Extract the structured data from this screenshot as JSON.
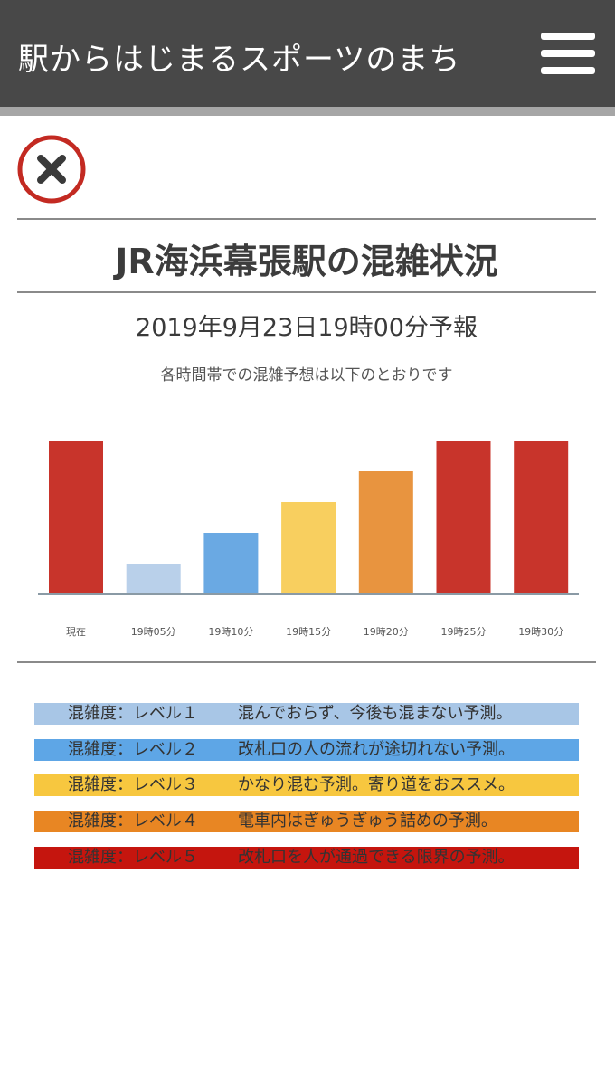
{
  "header": {
    "title": "駅からはじまるスポーツのまち",
    "menu_icon": "hamburger-menu-icon"
  },
  "close_icon": "close-icon",
  "page": {
    "title": "JR海浜幕張駅の混雑状況",
    "forecast_time": "2019年9月23日19時00分予報",
    "intro": "各時間帯での混雑予想は以下のとおりです"
  },
  "chart_data": {
    "type": "bar",
    "categories": [
      "現在",
      "19時05分",
      "19時10分",
      "19時15分",
      "19時20分",
      "19時25分",
      "19時30分"
    ],
    "values": [
      5,
      1,
      2,
      3,
      4,
      5,
      5
    ],
    "ylim": [
      0,
      5
    ],
    "grid": false,
    "level_colors": {
      "1": "#b9d0ea",
      "2": "#6aa9e3",
      "3": "#f8cf5f",
      "4": "#e8943f",
      "5": "#c8342b"
    }
  },
  "legend": [
    {
      "level": "混雑度：レベル１",
      "description": "混んでおらず、今後も混まない予測。",
      "color": "#a8c6e6"
    },
    {
      "level": "混雑度：レベル２",
      "description": "改札口の人の流れが途切れない予測。",
      "color": "#5ea6e6"
    },
    {
      "level": "混雑度：レベル３",
      "description": "かなり混む予測。寄り道をおススメ。",
      "color": "#f7c73f"
    },
    {
      "level": "混雑度：レベル４",
      "description": "電車内はぎゅうぎゅう詰めの予測。",
      "color": "#e88623"
    },
    {
      "level": "混雑度：レベル５",
      "description": "改札口を人が通過できる限界の予測。",
      "color": "#c5150e"
    }
  ]
}
